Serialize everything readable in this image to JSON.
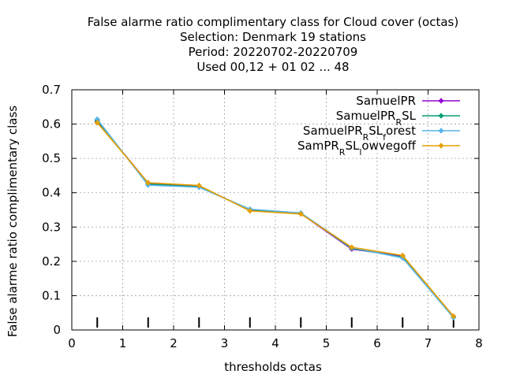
{
  "chart_data": {
    "type": "line",
    "title_lines": [
      "False alarme ratio complimentary class  for Cloud cover (octas)",
      "Selection: Denmark     19 stations",
      "Period: 20220702-20220709",
      "Used  00,12  + 01 02 ... 48"
    ],
    "xlabel": "thresholds octas",
    "ylabel": "False alarme ratio complimentary class",
    "xlim": [
      0,
      8
    ],
    "ylim": [
      0,
      0.7
    ],
    "x_ticks": [
      "0",
      "1",
      "2",
      "3",
      "4",
      "5",
      "6",
      "7",
      "8"
    ],
    "y_ticks": [
      "0",
      "0.1",
      "0.2",
      "0.3",
      "0.4",
      "0.5",
      "0.6",
      "0.7"
    ],
    "grid": true,
    "legend_position": "top-right",
    "x": [
      0.5,
      1.5,
      2.5,
      3.5,
      4.5,
      5.5,
      6.5,
      7.5
    ],
    "series": [
      {
        "name": "SamuelPR",
        "name_parts": [
          {
            "text": "SamuelPR",
            "sub": false
          }
        ],
        "color": "#9400d3",
        "values": [
          0.608,
          0.428,
          0.419,
          0.349,
          0.339,
          0.236,
          0.215,
          0.039
        ]
      },
      {
        "name": "SamuelPR_R SL",
        "name_parts": [
          {
            "text": "SamuelPR",
            "sub": false
          },
          {
            "text": "R",
            "sub": true
          },
          {
            "text": "SL",
            "sub": false
          }
        ],
        "color": "#009e73",
        "values": [
          0.611,
          0.425,
          0.417,
          0.351,
          0.34,
          0.238,
          0.212,
          0.037
        ]
      },
      {
        "name": "SamuelPR_R SL_f orest",
        "name_parts": [
          {
            "text": "SamuelPR",
            "sub": false
          },
          {
            "text": "R",
            "sub": true
          },
          {
            "text": "SL",
            "sub": false
          },
          {
            "text": "f",
            "sub": true
          },
          {
            "text": "orest",
            "sub": false
          }
        ],
        "color": "#56b4e9",
        "values": [
          0.614,
          0.422,
          0.416,
          0.352,
          0.341,
          0.24,
          0.21,
          0.036
        ]
      },
      {
        "name": "SamPR_R SL_l owvegoff",
        "name_parts": [
          {
            "text": "SamPR",
            "sub": false
          },
          {
            "text": "R",
            "sub": true
          },
          {
            "text": "SL",
            "sub": false
          },
          {
            "text": "l",
            "sub": true
          },
          {
            "text": "owvegoff",
            "sub": false
          }
        ],
        "color": "#e69f00",
        "values": [
          0.604,
          0.429,
          0.421,
          0.347,
          0.338,
          0.241,
          0.217,
          0.04
        ]
      }
    ]
  }
}
